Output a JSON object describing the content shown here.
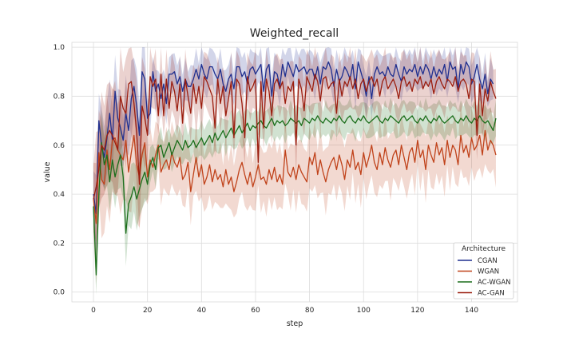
{
  "chart_data": {
    "type": "line",
    "title": "Weighted_recall",
    "xlabel": "step",
    "ylabel": "value",
    "xlim": [
      -8,
      157
    ],
    "ylim": [
      -0.04,
      1.02
    ],
    "xticks": [
      0,
      20,
      40,
      60,
      80,
      100,
      120,
      140
    ],
    "yticks": [
      0.0,
      0.2,
      0.4,
      0.6,
      0.8,
      1.0
    ],
    "ytick_labels": [
      "0.0",
      "0.2",
      "0.4",
      "0.6",
      "0.8",
      "1.0"
    ],
    "grid": true,
    "legend": {
      "title": "Architecture",
      "placement": "bottom-right"
    },
    "series": [
      {
        "name": "CGAN",
        "color": "#1f2f8f",
        "band": 0.07,
        "values": [
          0.4,
          0.32,
          0.7,
          0.6,
          0.55,
          0.63,
          0.73,
          0.62,
          0.82,
          0.71,
          0.67,
          0.62,
          0.73,
          0.66,
          0.79,
          0.84,
          0.76,
          0.64,
          0.9,
          0.87,
          0.71,
          0.73,
          0.9,
          0.82,
          0.85,
          0.79,
          0.85,
          0.77,
          0.89,
          0.89,
          0.9,
          0.85,
          0.88,
          0.82,
          0.87,
          0.84,
          0.84,
          0.87,
          0.91,
          0.87,
          0.93,
          0.89,
          0.87,
          0.92,
          0.92,
          0.89,
          0.87,
          0.91,
          0.85,
          0.82,
          0.87,
          0.89,
          0.83,
          0.92,
          0.92,
          0.88,
          0.9,
          0.85,
          0.91,
          0.92,
          0.89,
          0.91,
          0.93,
          0.82,
          0.91,
          0.93,
          0.8,
          0.9,
          0.89,
          0.84,
          0.93,
          0.88,
          0.94,
          0.91,
          0.88,
          0.93,
          0.9,
          0.91,
          0.92,
          0.89,
          0.91,
          0.91,
          0.87,
          0.92,
          0.85,
          0.92,
          0.91,
          0.94,
          0.91,
          0.84,
          0.91,
          0.86,
          0.88,
          0.92,
          0.9,
          0.87,
          0.93,
          0.83,
          0.94,
          0.9,
          0.86,
          0.8,
          0.88,
          0.79,
          0.89,
          0.92,
          0.89,
          0.9,
          0.88,
          0.92,
          0.89,
          0.88,
          0.93,
          0.89,
          0.86,
          0.92,
          0.89,
          0.91,
          0.9,
          0.93,
          0.88,
          0.92,
          0.89,
          0.93,
          0.91,
          0.87,
          0.92,
          0.88,
          0.91,
          0.89,
          0.93,
          0.86,
          0.94,
          0.91,
          0.92,
          0.83,
          0.93,
          0.89,
          0.94,
          0.92,
          0.85,
          0.88,
          0.93,
          0.87,
          0.83,
          0.89,
          0.81,
          0.87,
          0.85
        ]
      },
      {
        "name": "WGAN",
        "color": "#c0421a",
        "band": 0.11,
        "values": [
          0.38,
          0.28,
          0.57,
          0.46,
          0.44,
          0.58,
          0.5,
          0.62,
          0.63,
          0.58,
          0.56,
          0.54,
          0.62,
          0.49,
          0.57,
          0.64,
          0.52,
          0.47,
          0.56,
          0.61,
          0.47,
          0.54,
          0.51,
          0.56,
          0.6,
          0.49,
          0.52,
          0.54,
          0.5,
          0.57,
          0.53,
          0.51,
          0.55,
          0.46,
          0.48,
          0.53,
          0.41,
          0.48,
          0.55,
          0.47,
          0.52,
          0.44,
          0.47,
          0.52,
          0.45,
          0.5,
          0.46,
          0.48,
          0.43,
          0.5,
          0.44,
          0.47,
          0.41,
          0.45,
          0.5,
          0.53,
          0.48,
          0.44,
          0.49,
          0.43,
          0.47,
          0.52,
          0.46,
          0.47,
          0.44,
          0.5,
          0.46,
          0.51,
          0.45,
          0.48,
          0.44,
          0.58,
          0.49,
          0.47,
          0.51,
          0.46,
          0.52,
          0.49,
          0.47,
          0.45,
          0.55,
          0.52,
          0.57,
          0.48,
          0.54,
          0.49,
          0.45,
          0.5,
          0.53,
          0.55,
          0.5,
          0.56,
          0.52,
          0.46,
          0.54,
          0.51,
          0.58,
          0.5,
          0.53,
          0.48,
          0.57,
          0.51,
          0.55,
          0.6,
          0.53,
          0.5,
          0.57,
          0.52,
          0.59,
          0.54,
          0.51,
          0.56,
          0.58,
          0.52,
          0.6,
          0.55,
          0.5,
          0.57,
          0.59,
          0.53,
          0.62,
          0.55,
          0.58,
          0.5,
          0.6,
          0.56,
          0.53,
          0.61,
          0.56,
          0.59,
          0.52,
          0.62,
          0.55,
          0.6,
          0.58,
          0.52,
          0.64,
          0.57,
          0.6,
          0.55,
          0.63,
          0.58,
          0.6,
          0.64,
          0.56,
          0.66,
          0.58,
          0.62,
          0.6,
          0.56
        ]
      },
      {
        "name": "AC-WGAN",
        "color": "#1b6e1b",
        "band": 0.06,
        "values": [
          0.35,
          0.07,
          0.4,
          0.61,
          0.52,
          0.56,
          0.45,
          0.54,
          0.47,
          0.52,
          0.56,
          0.47,
          0.24,
          0.36,
          0.39,
          0.43,
          0.38,
          0.42,
          0.46,
          0.49,
          0.44,
          0.52,
          0.55,
          0.5,
          0.59,
          0.6,
          0.55,
          0.58,
          0.61,
          0.56,
          0.59,
          0.62,
          0.6,
          0.58,
          0.62,
          0.59,
          0.6,
          0.62,
          0.59,
          0.61,
          0.63,
          0.6,
          0.62,
          0.64,
          0.61,
          0.65,
          0.62,
          0.64,
          0.66,
          0.63,
          0.65,
          0.67,
          0.64,
          0.66,
          0.68,
          0.65,
          0.67,
          0.69,
          0.66,
          0.68,
          0.67,
          0.69,
          0.7,
          0.68,
          0.67,
          0.69,
          0.71,
          0.68,
          0.7,
          0.69,
          0.7,
          0.68,
          0.69,
          0.71,
          0.7,
          0.69,
          0.7,
          0.68,
          0.71,
          0.7,
          0.69,
          0.71,
          0.7,
          0.72,
          0.7,
          0.69,
          0.71,
          0.7,
          0.69,
          0.71,
          0.7,
          0.72,
          0.7,
          0.69,
          0.71,
          0.72,
          0.7,
          0.69,
          0.71,
          0.7,
          0.72,
          0.7,
          0.69,
          0.7,
          0.71,
          0.72,
          0.7,
          0.69,
          0.71,
          0.7,
          0.72,
          0.71,
          0.7,
          0.69,
          0.71,
          0.72,
          0.7,
          0.71,
          0.72,
          0.7,
          0.69,
          0.71,
          0.7,
          0.72,
          0.7,
          0.69,
          0.71,
          0.7,
          0.72,
          0.7,
          0.69,
          0.7,
          0.71,
          0.72,
          0.7,
          0.69,
          0.71,
          0.7,
          0.72,
          0.7,
          0.69,
          0.71,
          0.7,
          0.72,
          0.7,
          0.69,
          0.7,
          0.68,
          0.66,
          0.71
        ]
      },
      {
        "name": "AC-GAN",
        "color": "#9b1d0e",
        "band": 0.1,
        "values": [
          0.38,
          0.43,
          0.5,
          0.6,
          0.58,
          0.64,
          0.66,
          0.64,
          0.61,
          0.58,
          0.8,
          0.75,
          0.73,
          0.85,
          0.86,
          0.77,
          0.65,
          0.44,
          0.76,
          0.71,
          0.64,
          0.88,
          0.84,
          0.87,
          0.72,
          0.89,
          0.72,
          0.87,
          0.75,
          0.86,
          0.82,
          0.74,
          0.85,
          0.69,
          0.87,
          0.8,
          0.73,
          0.85,
          0.77,
          0.84,
          0.75,
          0.88,
          0.86,
          0.83,
          0.8,
          0.67,
          0.87,
          0.77,
          0.84,
          0.72,
          0.79,
          0.86,
          0.63,
          0.87,
          0.85,
          0.77,
          0.63,
          0.88,
          0.82,
          0.84,
          0.87,
          0.53,
          0.86,
          0.67,
          0.87,
          0.82,
          0.72,
          0.85,
          0.87,
          0.83,
          0.86,
          0.77,
          0.84,
          0.82,
          0.86,
          0.6,
          0.87,
          0.83,
          0.74,
          0.88,
          0.85,
          0.82,
          0.89,
          0.86,
          0.78,
          0.87,
          0.88,
          0.83,
          0.85,
          0.86,
          0.73,
          0.87,
          0.8,
          0.86,
          0.84,
          0.88,
          0.83,
          0.87,
          0.79,
          0.85,
          0.87,
          0.82,
          0.86,
          0.88,
          0.84,
          0.87,
          0.8,
          0.86,
          0.88,
          0.83,
          0.85,
          0.87,
          0.84,
          0.79,
          0.86,
          0.88,
          0.84,
          0.86,
          0.82,
          0.87,
          0.85,
          0.88,
          0.83,
          0.86,
          0.84,
          0.87,
          0.81,
          0.86,
          0.88,
          0.85,
          0.83,
          0.87,
          0.86,
          0.84,
          0.88,
          0.82,
          0.86,
          0.87,
          0.85,
          0.79,
          0.87,
          0.86,
          0.64,
          0.85,
          0.72,
          0.83,
          0.78,
          0.86,
          0.82,
          0.79
        ]
      }
    ]
  }
}
